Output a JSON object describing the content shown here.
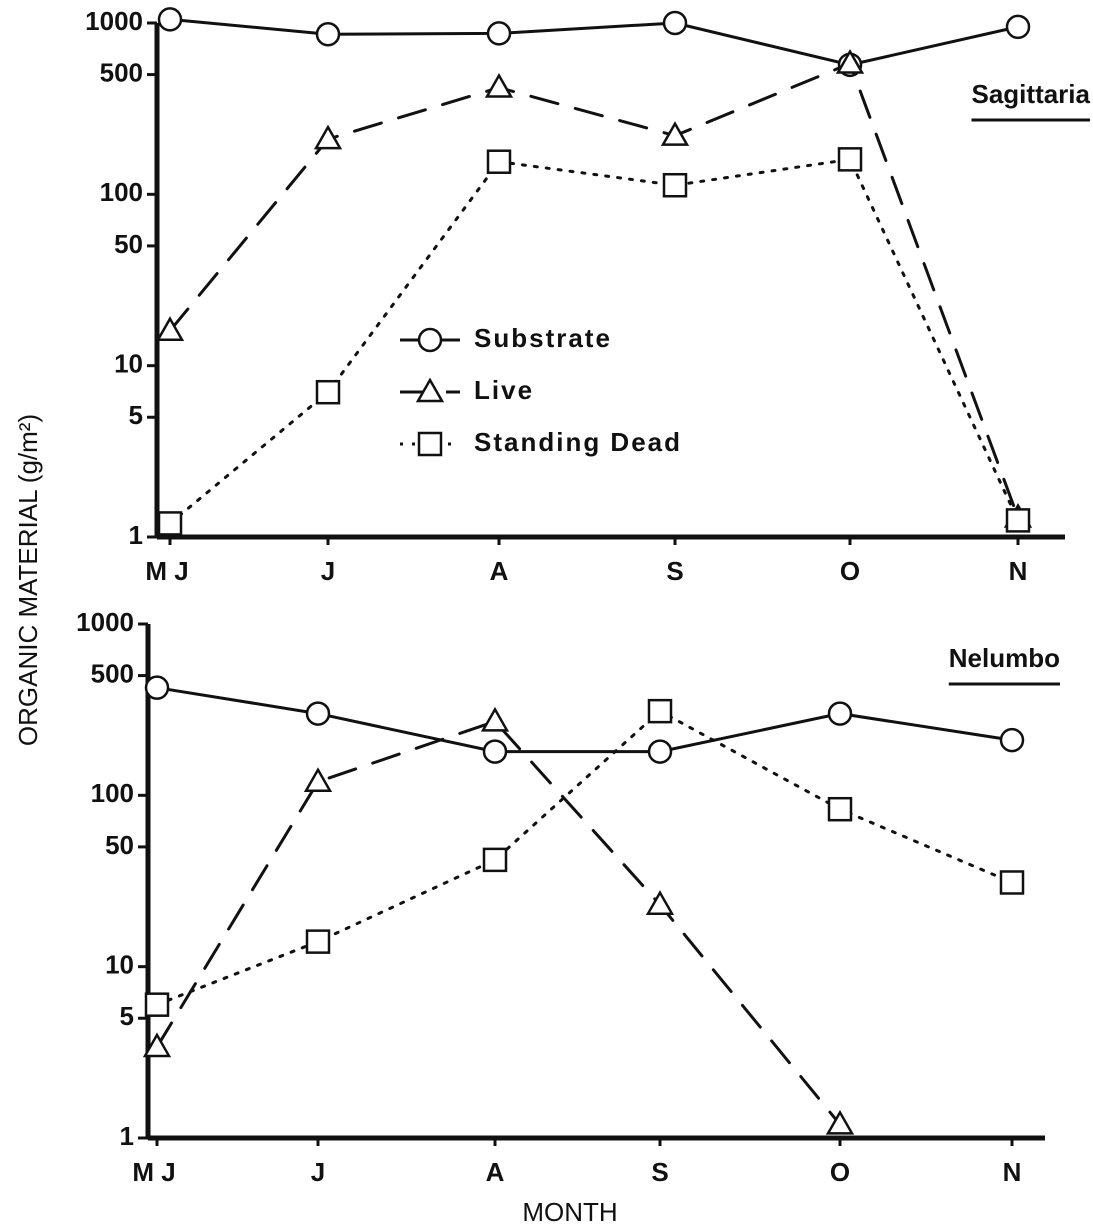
{
  "y_label": "ORGANIC MATERIAL (g/m²)",
  "x_label": "MONTH",
  "chart_data": [
    {
      "type": "line",
      "title": "Sagittaria",
      "log_y": true,
      "legend": "center",
      "categories": [
        "M J",
        "J",
        "A",
        "S",
        "O",
        "N"
      ],
      "ylim": [
        1,
        1000
      ],
      "yticks": [
        1,
        5,
        10,
        50,
        100,
        500,
        1000
      ],
      "series": [
        {
          "name": "Substrate",
          "color": "#111111",
          "marker": "circle",
          "dash": "solid",
          "values": [
            1050,
            860,
            870,
            1000,
            570,
            950
          ]
        },
        {
          "name": "Live",
          "color": "#111111",
          "marker": "triangle",
          "dash": "dashed",
          "values": [
            16,
            210,
            420,
            220,
            580,
            1.3
          ]
        },
        {
          "name": "Standing Dead",
          "color": "#111111",
          "marker": "square",
          "dash": "dotted",
          "values": [
            1.2,
            7,
            155,
            113,
            160,
            1.25
          ]
        }
      ]
    },
    {
      "type": "line",
      "title": "Nelumbo",
      "log_y": true,
      "categories": [
        "M J",
        "J",
        "A",
        "S",
        "O",
        "N"
      ],
      "ylim": [
        1,
        1000
      ],
      "yticks": [
        1,
        5,
        10,
        50,
        100,
        500,
        1000
      ],
      "series": [
        {
          "name": "Substrate",
          "color": "#111111",
          "marker": "circle",
          "dash": "solid",
          "values": [
            425,
            300,
            180,
            180,
            300,
            210
          ]
        },
        {
          "name": "Live",
          "color": "#111111",
          "marker": "triangle",
          "dash": "dashed",
          "values": [
            3.4,
            120,
            270,
            23,
            1.2,
            null
          ]
        },
        {
          "name": "Standing Dead",
          "color": "#111111",
          "marker": "square",
          "dash": "dotted",
          "values": [
            6,
            14,
            42,
            310,
            83,
            31
          ]
        }
      ]
    }
  ]
}
